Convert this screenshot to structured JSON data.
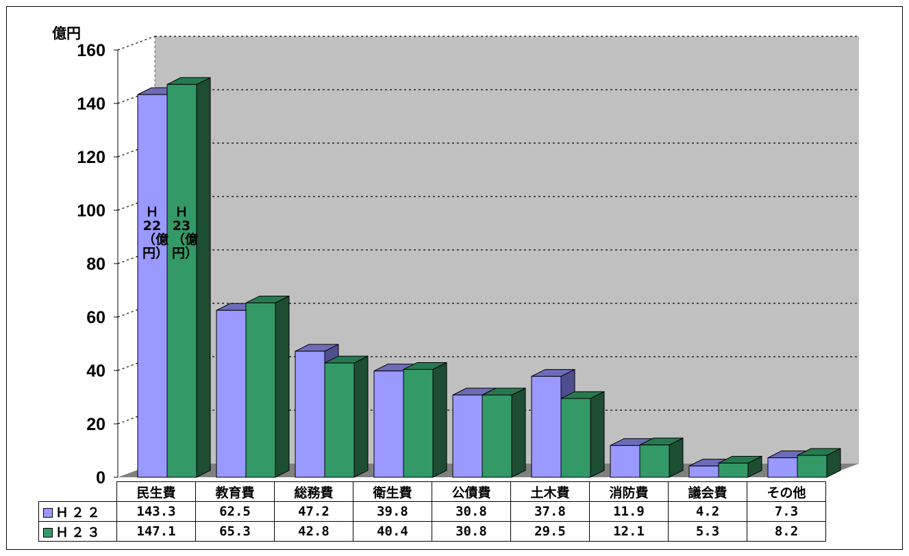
{
  "chart_data": {
    "type": "bar",
    "unit": "億円",
    "categories": [
      "民生費",
      "教育費",
      "総務費",
      "衛生費",
      "公債費",
      "土木費",
      "消防費",
      "議会費",
      "その他"
    ],
    "series": [
      {
        "name": "Ｈ２２",
        "values": [
          143.3,
          62.5,
          47.2,
          39.8,
          30.8,
          37.8,
          11.9,
          4.2,
          7.3
        ],
        "color": "#9999ff",
        "inline_label": "Ｈ22（億円）"
      },
      {
        "name": "Ｈ２３",
        "values": [
          147.1,
          65.3,
          42.8,
          40.4,
          30.8,
          29.5,
          12.1,
          5.3,
          8.2
        ],
        "color": "#339966",
        "inline_label": "Ｈ23（億円）"
      }
    ],
    "ylim": [
      0,
      160
    ],
    "yticks": [
      0,
      20,
      40,
      60,
      80,
      100,
      120,
      140,
      160
    ],
    "table_values": [
      [
        "143.3",
        "62.5",
        "47.2",
        "39.8",
        "30.8",
        "37.8",
        "11.9",
        "4.2",
        "7.3"
      ],
      [
        "147.1",
        "65.3",
        "42.8",
        "40.4",
        "30.8",
        "29.5",
        "12.1",
        "5.3",
        "8.2"
      ]
    ],
    "grid": true,
    "style": "3d-clustered-bar",
    "wall_color": "#c0c0c0",
    "floor_color": "#808080"
  }
}
